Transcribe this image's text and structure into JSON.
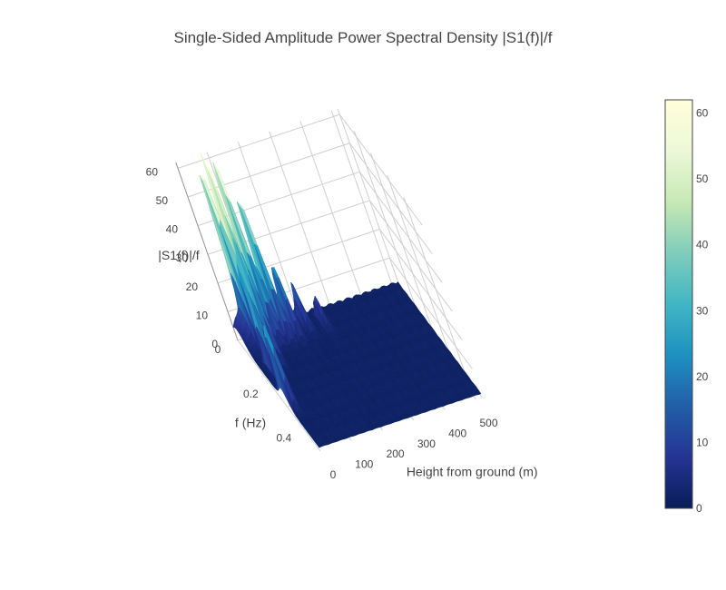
{
  "chart_data": {
    "type": "surface",
    "title": "Single-Sided Amplitude Power Spectral Density |S1(f)|/f",
    "xlabel": "Height from ground (m)",
    "ylabel": "f (Hz)",
    "zlabel": "|S1(f)|/f",
    "x_ticks": [
      "0",
      "100",
      "200",
      "300",
      "400",
      "500"
    ],
    "y_ticks": [
      "0",
      "0.2",
      "0.4"
    ],
    "z_ticks": [
      "0",
      "10",
      "20",
      "30",
      "40",
      "50",
      "60"
    ],
    "xlim": [
      0,
      520
    ],
    "ylim": [
      0,
      0.5
    ],
    "zlim": [
      0,
      62
    ],
    "grid": true,
    "colorscale": "YlGnBu",
    "colorscale_stops": [
      "#081d58",
      "#253494",
      "#225ea8",
      "#1d91c0",
      "#41b6c4",
      "#7fcdbb",
      "#c7e9b4",
      "#edf8d9",
      "#ffffd9"
    ],
    "colorbar": {
      "range": [
        0,
        62
      ],
      "ticks": [
        "0",
        "10",
        "20",
        "30",
        "40",
        "50",
        "60"
      ]
    },
    "peaks": [
      {
        "height_m": 48,
        "f_hz": 0.05,
        "value": 54
      },
      {
        "height_m": 70,
        "f_hz": 0.06,
        "value": 58
      },
      {
        "height_m": 100,
        "f_hz": 0.04,
        "value": 51
      },
      {
        "height_m": 130,
        "f_hz": 0.05,
        "value": 43
      },
      {
        "height_m": 30,
        "f_hz": 0.18,
        "value": 35
      },
      {
        "height_m": 12,
        "f_hz": 0.3,
        "value": 30
      },
      {
        "height_m": 60,
        "f_hz": 0.12,
        "value": 40
      },
      {
        "height_m": 160,
        "f_hz": 0.06,
        "value": 22
      },
      {
        "height_m": 200,
        "f_hz": 0.05,
        "value": 15
      },
      {
        "height_m": 250,
        "f_hz": 0.06,
        "value": 10
      }
    ]
  }
}
